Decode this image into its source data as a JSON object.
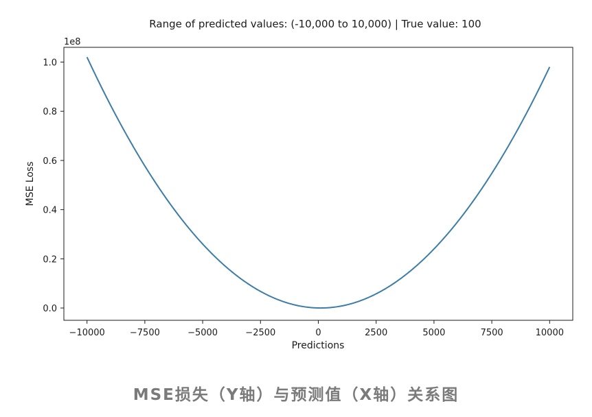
{
  "chart_data": {
    "type": "line",
    "title": "Range of predicted values: (-10,000 to 10,000) | True value: 100",
    "xlabel": "Predictions",
    "ylabel": "MSE Loss",
    "y_offset_label": "1e8",
    "true_value": 100,
    "xlim": [
      -11000,
      11000
    ],
    "ylim": [
      -0.05,
      1.06
    ],
    "y_scale_factor": 100000000,
    "x_ticks": [
      -10000,
      -7500,
      -5000,
      -2500,
      0,
      2500,
      5000,
      7500,
      10000
    ],
    "x_tick_labels": [
      "−10000",
      "−7500",
      "−5000",
      "−2500",
      "0",
      "2500",
      "5000",
      "7500",
      "10000"
    ],
    "y_ticks": [
      0.0,
      0.2,
      0.4,
      0.6,
      0.8,
      1.0
    ],
    "y_tick_labels": [
      "0.0",
      "0.2",
      "0.4",
      "0.6",
      "0.8",
      "1.0"
    ],
    "grid": false,
    "legend": "none",
    "series": [
      {
        "color": "#3b7ca8",
        "x": [
          -10000,
          -9000,
          -8000,
          -7000,
          -6000,
          -5000,
          -4000,
          -3000,
          -2000,
          -1000,
          0,
          100,
          1000,
          2000,
          3000,
          4000,
          5000,
          6000,
          7000,
          8000,
          9000,
          10000
        ],
        "y": [
          1.0201,
          0.8281,
          0.6561,
          0.5041,
          0.3721,
          0.2601,
          0.1681,
          0.0961,
          0.0441,
          0.0121,
          0.0001,
          0.0,
          0.0081,
          0.0361,
          0.0841,
          0.1521,
          0.2401,
          0.3481,
          0.4761,
          0.6241,
          0.7921,
          0.9801
        ]
      }
    ]
  },
  "caption": "MSE损失（Y轴）与预测值（X轴）关系图"
}
